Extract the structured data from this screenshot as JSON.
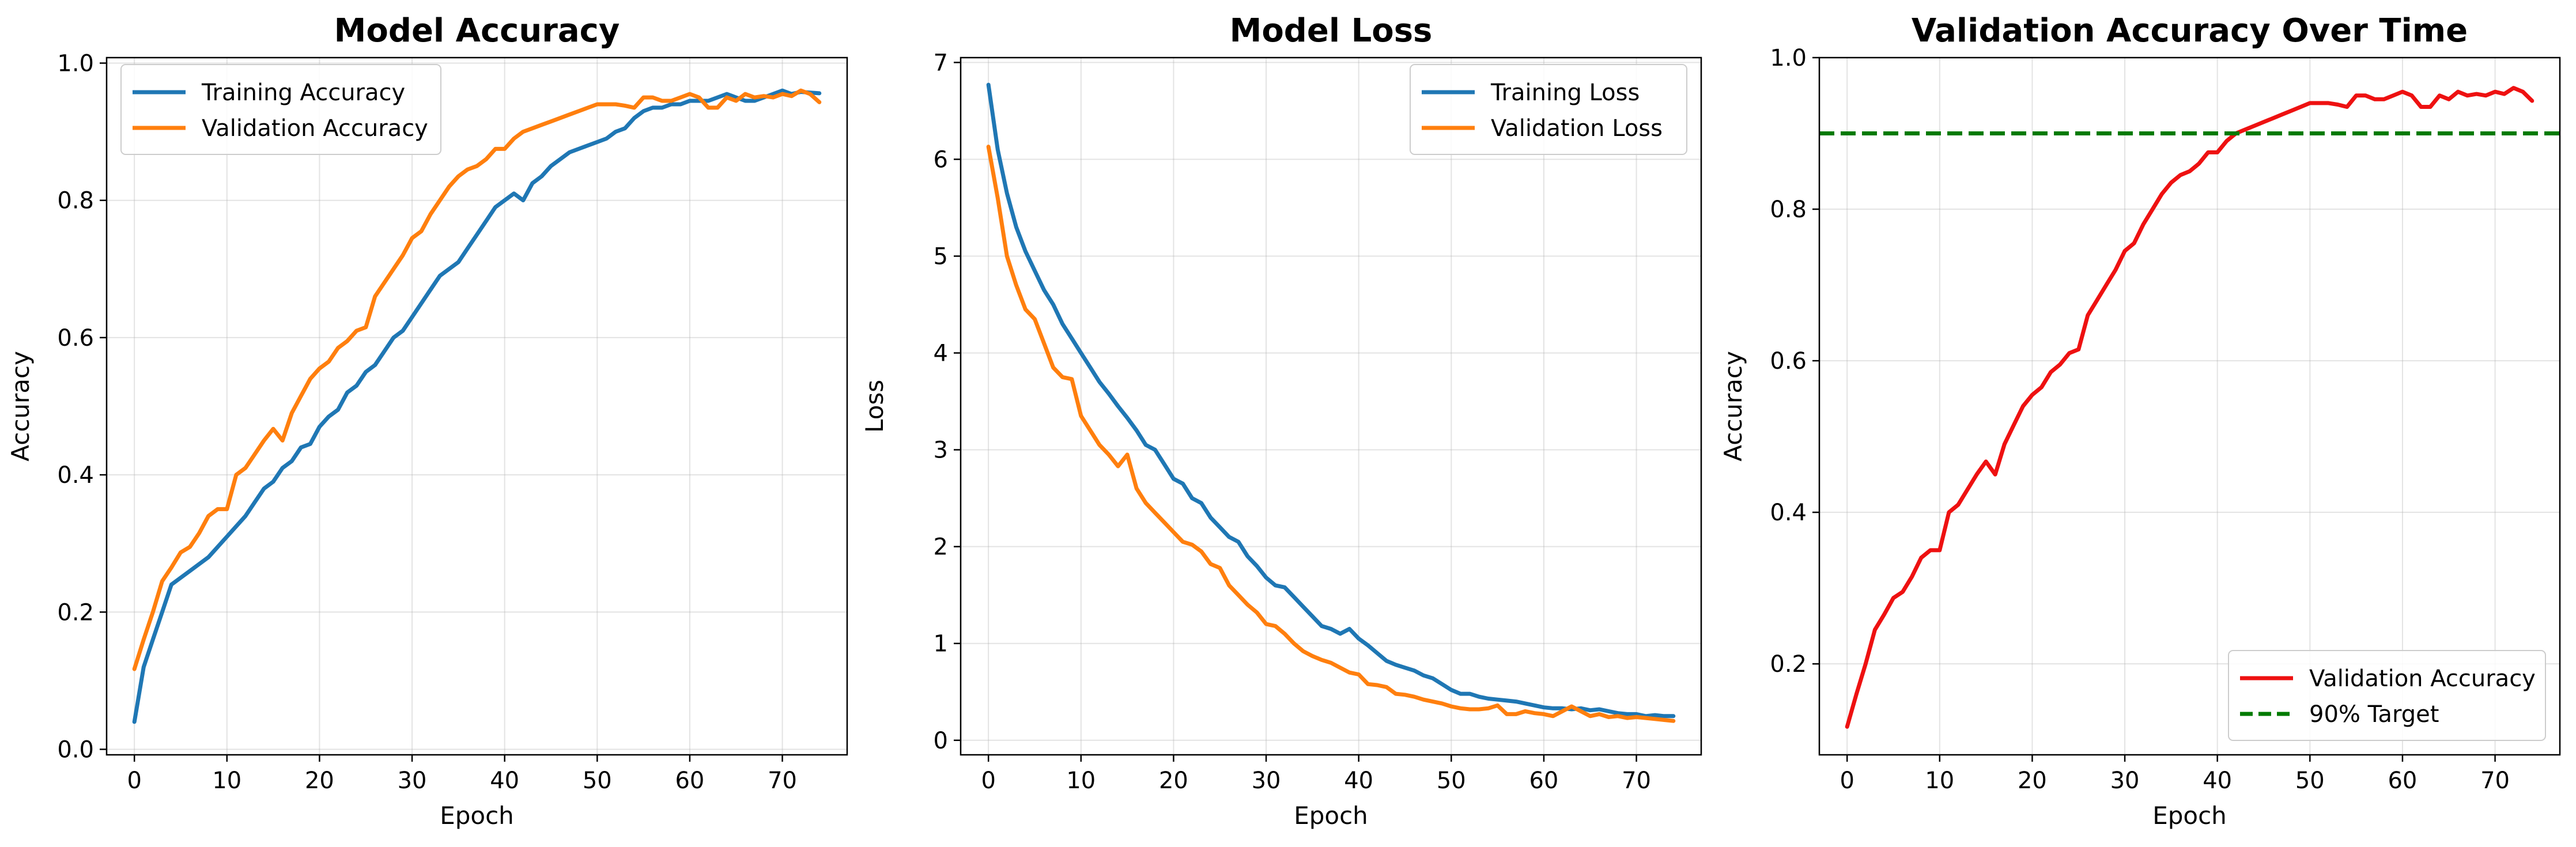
{
  "colors": {
    "blue": "#1f77b4",
    "orange": "#ff7f0e",
    "red": "#ee1111",
    "green": "#007a00"
  },
  "chart_data": [
    {
      "type": "line",
      "title": "Model Accuracy",
      "xlabel": "Epoch",
      "ylabel": "Accuracy",
      "xlim": [
        -3,
        77
      ],
      "ylim": [
        -0.008,
        1.008
      ],
      "xticks": [
        0,
        10,
        20,
        30,
        40,
        50,
        60,
        70
      ],
      "xtick_labels": [
        "0",
        "10",
        "20",
        "30",
        "40",
        "50",
        "60",
        "70"
      ],
      "yticks": [
        0.0,
        0.2,
        0.4,
        0.6,
        0.8,
        1.0
      ],
      "ytick_labels": [
        "0.0",
        "0.2",
        "0.4",
        "0.6",
        "0.8",
        "1.0"
      ],
      "grid": true,
      "legend_position": "upper left",
      "series": [
        {
          "name": "Training Accuracy",
          "color_key": "blue",
          "x": [
            0,
            1,
            2,
            3,
            4,
            5,
            6,
            7,
            8,
            9,
            10,
            11,
            12,
            13,
            14,
            15,
            16,
            17,
            18,
            19,
            20,
            21,
            22,
            23,
            24,
            25,
            26,
            27,
            28,
            29,
            30,
            31,
            32,
            33,
            34,
            35,
            36,
            37,
            38,
            39,
            40,
            41,
            42,
            43,
            44,
            45,
            46,
            47,
            48,
            49,
            50,
            51,
            52,
            53,
            54,
            55,
            56,
            57,
            58,
            59,
            60,
            61,
            62,
            63,
            64,
            65,
            66,
            67,
            68,
            69,
            70,
            71,
            72,
            73,
            74
          ],
          "y": [
            0.04,
            0.12,
            0.16,
            0.2,
            0.24,
            0.25,
            0.26,
            0.27,
            0.28,
            0.295,
            0.31,
            0.325,
            0.34,
            0.36,
            0.38,
            0.39,
            0.41,
            0.42,
            0.44,
            0.445,
            0.47,
            0.485,
            0.495,
            0.52,
            0.53,
            0.55,
            0.56,
            0.58,
            0.6,
            0.61,
            0.63,
            0.65,
            0.67,
            0.69,
            0.7,
            0.71,
            0.73,
            0.75,
            0.77,
            0.79,
            0.8,
            0.81,
            0.8,
            0.825,
            0.835,
            0.85,
            0.86,
            0.87,
            0.875,
            0.88,
            0.885,
            0.89,
            0.9,
            0.905,
            0.92,
            0.93,
            0.935,
            0.935,
            0.94,
            0.94,
            0.945,
            0.945,
            0.945,
            0.95,
            0.955,
            0.95,
            0.945,
            0.945,
            0.95,
            0.955,
            0.96,
            0.955,
            0.958,
            0.957,
            0.956
          ]
        },
        {
          "name": "Validation Accuracy",
          "color_key": "orange",
          "x": [
            0,
            1,
            2,
            3,
            4,
            5,
            6,
            7,
            8,
            9,
            10,
            11,
            12,
            13,
            14,
            15,
            16,
            17,
            18,
            19,
            20,
            21,
            22,
            23,
            24,
            25,
            26,
            27,
            28,
            29,
            30,
            31,
            32,
            33,
            34,
            35,
            36,
            37,
            38,
            39,
            40,
            41,
            42,
            43,
            44,
            45,
            46,
            47,
            48,
            49,
            50,
            51,
            52,
            53,
            54,
            55,
            56,
            57,
            58,
            59,
            60,
            61,
            62,
            63,
            64,
            65,
            66,
            67,
            68,
            69,
            70,
            71,
            72,
            73,
            74
          ],
          "y": [
            0.117,
            0.16,
            0.2,
            0.245,
            0.265,
            0.287,
            0.295,
            0.315,
            0.34,
            0.35,
            0.35,
            0.4,
            0.41,
            0.43,
            0.45,
            0.467,
            0.45,
            0.49,
            0.515,
            0.54,
            0.555,
            0.565,
            0.585,
            0.595,
            0.61,
            0.615,
            0.66,
            0.68,
            0.7,
            0.72,
            0.745,
            0.755,
            0.78,
            0.8,
            0.82,
            0.835,
            0.845,
            0.85,
            0.86,
            0.875,
            0.875,
            0.89,
            0.9,
            0.905,
            0.91,
            0.915,
            0.92,
            0.925,
            0.93,
            0.935,
            0.94,
            0.94,
            0.94,
            0.938,
            0.935,
            0.95,
            0.95,
            0.945,
            0.945,
            0.95,
            0.955,
            0.95,
            0.935,
            0.935,
            0.95,
            0.945,
            0.955,
            0.95,
            0.952,
            0.95,
            0.955,
            0.952,
            0.96,
            0.955,
            0.943
          ]
        }
      ]
    },
    {
      "type": "line",
      "title": "Model Loss",
      "xlabel": "Epoch",
      "ylabel": "Loss",
      "xlim": [
        -3,
        77
      ],
      "ylim": [
        -0.15,
        7.05
      ],
      "xticks": [
        0,
        10,
        20,
        30,
        40,
        50,
        60,
        70
      ],
      "xtick_labels": [
        "0",
        "10",
        "20",
        "30",
        "40",
        "50",
        "60",
        "70"
      ],
      "yticks": [
        0,
        1,
        2,
        3,
        4,
        5,
        6,
        7
      ],
      "ytick_labels": [
        "0",
        "1",
        "2",
        "3",
        "4",
        "5",
        "6",
        "7"
      ],
      "grid": true,
      "legend_position": "upper right",
      "series": [
        {
          "name": "Training Loss",
          "color_key": "blue",
          "x": [
            0,
            1,
            2,
            3,
            4,
            5,
            6,
            7,
            8,
            9,
            10,
            11,
            12,
            13,
            14,
            15,
            16,
            17,
            18,
            19,
            20,
            21,
            22,
            23,
            24,
            25,
            26,
            27,
            28,
            29,
            30,
            31,
            32,
            33,
            34,
            35,
            36,
            37,
            38,
            39,
            40,
            41,
            42,
            43,
            44,
            45,
            46,
            47,
            48,
            49,
            50,
            51,
            52,
            53,
            54,
            55,
            56,
            57,
            58,
            59,
            60,
            61,
            62,
            63,
            64,
            65,
            66,
            67,
            68,
            69,
            70,
            71,
            72,
            73,
            74
          ],
          "y": [
            6.77,
            6.1,
            5.65,
            5.3,
            5.05,
            4.85,
            4.65,
            4.5,
            4.3,
            4.15,
            4.0,
            3.85,
            3.7,
            3.58,
            3.45,
            3.33,
            3.2,
            3.05,
            3.0,
            2.85,
            2.7,
            2.65,
            2.5,
            2.45,
            2.3,
            2.2,
            2.1,
            2.05,
            1.9,
            1.8,
            1.68,
            1.6,
            1.58,
            1.48,
            1.38,
            1.28,
            1.18,
            1.15,
            1.1,
            1.15,
            1.05,
            0.98,
            0.9,
            0.82,
            0.78,
            0.75,
            0.72,
            0.67,
            0.64,
            0.58,
            0.52,
            0.48,
            0.48,
            0.45,
            0.43,
            0.42,
            0.41,
            0.4,
            0.38,
            0.36,
            0.34,
            0.33,
            0.33,
            0.32,
            0.33,
            0.31,
            0.32,
            0.3,
            0.28,
            0.27,
            0.27,
            0.25,
            0.26,
            0.25,
            0.25
          ]
        },
        {
          "name": "Validation Loss",
          "color_key": "orange",
          "x": [
            0,
            1,
            2,
            3,
            4,
            5,
            6,
            7,
            8,
            9,
            10,
            11,
            12,
            13,
            14,
            15,
            16,
            17,
            18,
            19,
            20,
            21,
            22,
            23,
            24,
            25,
            26,
            27,
            28,
            29,
            30,
            31,
            32,
            33,
            34,
            35,
            36,
            37,
            38,
            39,
            40,
            41,
            42,
            43,
            44,
            45,
            46,
            47,
            48,
            49,
            50,
            51,
            52,
            53,
            54,
            55,
            56,
            57,
            58,
            59,
            60,
            61,
            62,
            63,
            64,
            65,
            66,
            67,
            68,
            69,
            70,
            71,
            72,
            73,
            74
          ],
          "y": [
            6.13,
            5.6,
            5.0,
            4.7,
            4.45,
            4.35,
            4.1,
            3.85,
            3.75,
            3.73,
            3.35,
            3.2,
            3.05,
            2.95,
            2.83,
            2.95,
            2.6,
            2.45,
            2.35,
            2.25,
            2.15,
            2.05,
            2.02,
            1.95,
            1.82,
            1.78,
            1.6,
            1.5,
            1.4,
            1.32,
            1.2,
            1.18,
            1.1,
            1.0,
            0.92,
            0.87,
            0.83,
            0.8,
            0.75,
            0.7,
            0.68,
            0.58,
            0.57,
            0.55,
            0.48,
            0.47,
            0.45,
            0.42,
            0.4,
            0.38,
            0.35,
            0.33,
            0.32,
            0.32,
            0.33,
            0.36,
            0.27,
            0.27,
            0.3,
            0.28,
            0.27,
            0.25,
            0.3,
            0.35,
            0.3,
            0.25,
            0.27,
            0.24,
            0.25,
            0.23,
            0.24,
            0.23,
            0.22,
            0.21,
            0.2
          ]
        }
      ]
    },
    {
      "type": "line",
      "title": "Validation Accuracy Over Time",
      "xlabel": "Epoch",
      "ylabel": "Accuracy",
      "xlim": [
        -3,
        77
      ],
      "ylim": [
        0.08,
        1.0
      ],
      "xticks": [
        0,
        10,
        20,
        30,
        40,
        50,
        60,
        70
      ],
      "xtick_labels": [
        "0",
        "10",
        "20",
        "30",
        "40",
        "50",
        "60",
        "70"
      ],
      "yticks": [
        0.2,
        0.4,
        0.6,
        0.8,
        1.0
      ],
      "ytick_labels": [
        "0.2",
        "0.4",
        "0.6",
        "0.8",
        "1.0"
      ],
      "grid": true,
      "legend_position": "lower right",
      "series": [
        {
          "name": "Validation Accuracy",
          "color_key": "red",
          "x": [
            0,
            1,
            2,
            3,
            4,
            5,
            6,
            7,
            8,
            9,
            10,
            11,
            12,
            13,
            14,
            15,
            16,
            17,
            18,
            19,
            20,
            21,
            22,
            23,
            24,
            25,
            26,
            27,
            28,
            29,
            30,
            31,
            32,
            33,
            34,
            35,
            36,
            37,
            38,
            39,
            40,
            41,
            42,
            43,
            44,
            45,
            46,
            47,
            48,
            49,
            50,
            51,
            52,
            53,
            54,
            55,
            56,
            57,
            58,
            59,
            60,
            61,
            62,
            63,
            64,
            65,
            66,
            67,
            68,
            69,
            70,
            71,
            72,
            73,
            74
          ],
          "y": [
            0.117,
            0.16,
            0.2,
            0.245,
            0.265,
            0.287,
            0.295,
            0.315,
            0.34,
            0.35,
            0.35,
            0.4,
            0.41,
            0.43,
            0.45,
            0.467,
            0.45,
            0.49,
            0.515,
            0.54,
            0.555,
            0.565,
            0.585,
            0.595,
            0.61,
            0.615,
            0.66,
            0.68,
            0.7,
            0.72,
            0.745,
            0.755,
            0.78,
            0.8,
            0.82,
            0.835,
            0.845,
            0.85,
            0.86,
            0.875,
            0.875,
            0.89,
            0.9,
            0.905,
            0.91,
            0.915,
            0.92,
            0.925,
            0.93,
            0.935,
            0.94,
            0.94,
            0.94,
            0.938,
            0.935,
            0.95,
            0.95,
            0.945,
            0.945,
            0.95,
            0.955,
            0.95,
            0.935,
            0.935,
            0.95,
            0.945,
            0.955,
            0.95,
            0.952,
            0.95,
            0.955,
            0.952,
            0.96,
            0.955,
            0.943
          ]
        },
        {
          "name": "90% Target",
          "color_key": "green",
          "style": "dashed",
          "hline": 0.9
        }
      ]
    }
  ]
}
